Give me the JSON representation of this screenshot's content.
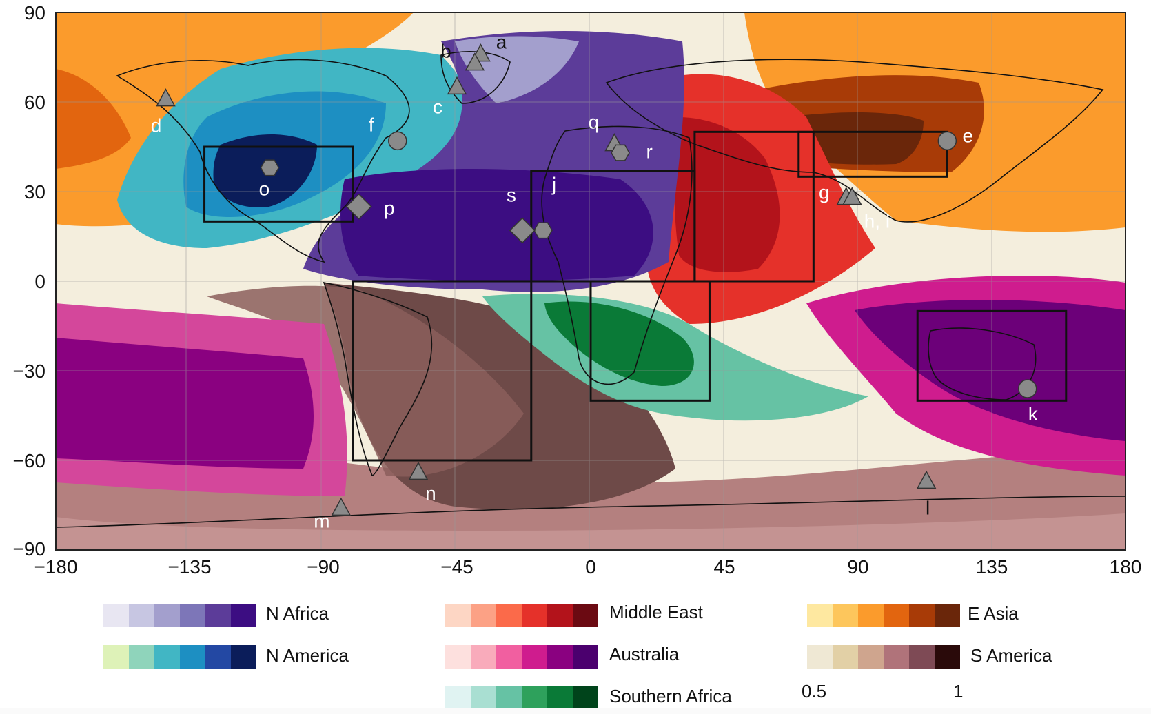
{
  "map": {
    "x_ticks": [
      "−180",
      "−135",
      "−90",
      "−45",
      "0",
      "45",
      "90",
      "135",
      "180"
    ],
    "y_ticks": [
      "90",
      "60",
      "30",
      "0",
      "−30",
      "−60",
      "−90"
    ],
    "boxes": [
      {
        "region": "N America",
        "lon": [
          -130,
          -80
        ],
        "lat": [
          20,
          45
        ]
      },
      {
        "region": "N Africa",
        "lon": [
          -20,
          35
        ],
        "lat": [
          0,
          37
        ]
      },
      {
        "region": "Middle East",
        "lon": [
          35,
          75
        ],
        "lat": [
          0,
          50
        ]
      },
      {
        "region": "E Asia",
        "lon": [
          70,
          120
        ],
        "lat": [
          35,
          50
        ]
      },
      {
        "region": "S America",
        "lon": [
          -80,
          -20
        ],
        "lat": [
          -60,
          0
        ]
      },
      {
        "region": "Southern Africa",
        "lon": [
          0,
          40
        ],
        "lat": [
          -40,
          0
        ]
      },
      {
        "region": "Australia",
        "lon": [
          110,
          160
        ],
        "lat": [
          -40,
          -10
        ]
      }
    ],
    "sites": [
      {
        "label": "a",
        "shape": "triangle",
        "lon": -37,
        "lat": 76
      },
      {
        "label": "b",
        "shape": "triangle",
        "lon": -39,
        "lat": 73
      },
      {
        "label": "c",
        "shape": "triangle",
        "lon": -45,
        "lat": 65
      },
      {
        "label": "d",
        "shape": "triangle",
        "lon": -143,
        "lat": 61
      },
      {
        "label": "e",
        "shape": "circle",
        "lon": 120,
        "lat": 47
      },
      {
        "label": "f",
        "shape": "circle",
        "lon": -65,
        "lat": 47
      },
      {
        "label": "g",
        "shape": "triangle",
        "lon": 86,
        "lat": 28
      },
      {
        "label": "h, i",
        "shape": "triangle",
        "lon": 88,
        "lat": 28
      },
      {
        "label": "j",
        "shape": "hexagon",
        "lon": -16,
        "lat": 17
      },
      {
        "label": "k",
        "shape": "circle",
        "lon": 147,
        "lat": -36
      },
      {
        "label": "l",
        "shape": "triangle",
        "lon": 113,
        "lat": -67
      },
      {
        "label": "m",
        "shape": "triangle",
        "lon": -84,
        "lat": -76
      },
      {
        "label": "n",
        "shape": "triangle",
        "lon": -58,
        "lat": -64
      },
      {
        "label": "o",
        "shape": "hexagon",
        "lon": -108,
        "lat": 38
      },
      {
        "label": "p",
        "shape": "diamond",
        "lon": -78,
        "lat": 25
      },
      {
        "label": "q",
        "shape": "triangle",
        "lon": 8,
        "lat": 46
      },
      {
        "label": "r",
        "shape": "hexagon",
        "lon": 10,
        "lat": 43
      },
      {
        "label": "s",
        "shape": "diamond",
        "lon": -23,
        "lat": 17
      }
    ]
  },
  "legend": {
    "items": [
      {
        "label": "N Africa",
        "colors": [
          "#e8e6f2",
          "#c7c6e2",
          "#a39fcd",
          "#7d76b8",
          "#5c3c99",
          "#3c0d82"
        ]
      },
      {
        "label": "Middle East",
        "colors": [
          "#fdd6c4",
          "#fca185",
          "#fb6a4a",
          "#e5312a",
          "#b3131b",
          "#6b0a12"
        ]
      },
      {
        "label": "E Asia",
        "colors": [
          "#fee8a0",
          "#fdc65c",
          "#fb9b2c",
          "#e2650f",
          "#a83b07",
          "#6a260a"
        ]
      },
      {
        "label": "N America",
        "colors": [
          "#def2b8",
          "#8fd4bb",
          "#41b6c4",
          "#1d8fc2",
          "#2348a3",
          "#0b1d5a"
        ]
      },
      {
        "label": "Australia",
        "colors": [
          "#fde0de",
          "#f9abbb",
          "#f15fa0",
          "#cf1c8e",
          "#8a0180",
          "#4b006e"
        ]
      },
      {
        "label": "S America",
        "colors": [
          "#efe8d4",
          "#e2d0a6",
          "#cfa58e",
          "#b0737a",
          "#7e4a55",
          "#2a0a0a"
        ]
      },
      {
        "label": "Southern Africa",
        "colors": [
          "#e0f3f2",
          "#a9dfd2",
          "#66c2a4",
          "#2ea15c",
          "#0a7a37",
          "#00441b"
        ]
      }
    ],
    "scale_min": "0.5",
    "scale_max": "1"
  }
}
